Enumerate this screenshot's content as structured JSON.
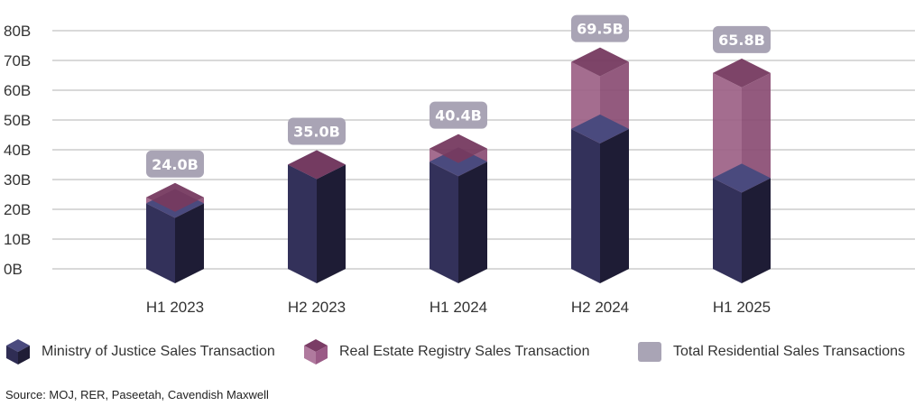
{
  "chart_data": {
    "type": "bar",
    "stacked": true,
    "categories": [
      "H1 2023",
      "H2 2023",
      "H1 2024",
      "H2 2024",
      "H1 2025"
    ],
    "series": [
      {
        "name": "Ministry of Justice Sales Transaction",
        "values": [
          22.0,
          35.0,
          36.0,
          47.0,
          30.5
        ],
        "color": "#33315a"
      },
      {
        "name": "Real Estate Registry Sales Transaction",
        "values": [
          2.0,
          0.0,
          4.4,
          22.5,
          35.3
        ],
        "color": "#9a5a86"
      }
    ],
    "totals": {
      "name": "Total Residential Sales Transactions",
      "values": [
        24.0,
        35.0,
        40.4,
        69.5,
        65.8
      ],
      "labels": [
        "24.0B",
        "35.0B",
        "40.4B",
        "69.5B",
        "65.8B"
      ],
      "color": "#a9a4b5"
    },
    "ylim": [
      0,
      80
    ],
    "yticks": [
      0,
      10,
      20,
      30,
      40,
      50,
      60,
      70,
      80
    ],
    "ytick_labels": [
      "0B",
      "10B",
      "20B",
      "30B",
      "40B",
      "50B",
      "60B",
      "70B",
      "80B"
    ],
    "title": "",
    "xlabel": "",
    "ylabel": "",
    "grid": true,
    "legend_position": "bottom"
  },
  "legend": {
    "items": [
      {
        "label": "Ministry of Justice Sales Transaction",
        "icon": "dark-cube-icon"
      },
      {
        "label": "Real Estate Registry Sales Transaction",
        "icon": "purple-cube-icon"
      },
      {
        "label": "Total Residential Sales Transactions",
        "icon": "gray-square-icon"
      }
    ]
  },
  "source": "Source: MOJ, RER, Paseetah, Cavendish Maxwell"
}
